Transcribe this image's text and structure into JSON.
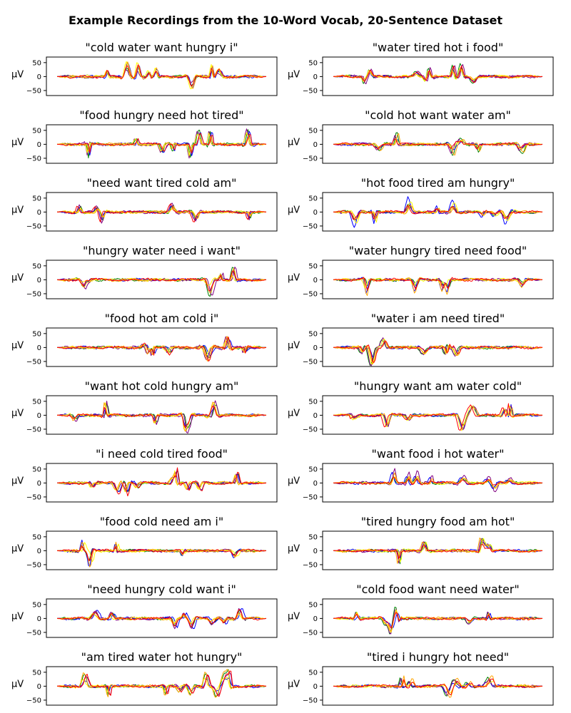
{
  "figure": {
    "title": "Example Recordings from the 10-Word Vocab, 20-Sentence Dataset"
  },
  "chart_data": {
    "type": "line",
    "ylabel": "µV",
    "ylim": [
      -68,
      70
    ],
    "yticks": [
      50,
      0,
      -50
    ],
    "xlabel": "",
    "grid": false,
    "legend": "none",
    "series_colors": [
      "green",
      "blue",
      "purple",
      "yellow",
      "orange",
      "red"
    ],
    "panels": [
      {
        "title": "\"cold water want hungry i\""
      },
      {
        "title": "\"water tired hot i food\""
      },
      {
        "title": "\"food hungry need hot tired\""
      },
      {
        "title": "\"cold hot want water am\""
      },
      {
        "title": "\"need want tired cold am\""
      },
      {
        "title": "\"hot food tired am hungry\""
      },
      {
        "title": "\"hungry water need i want\""
      },
      {
        "title": "\"water hungry tired need food\""
      },
      {
        "title": "\"food hot am cold i\""
      },
      {
        "title": "\"water i am need tired\""
      },
      {
        "title": "\"want hot cold hungry am\""
      },
      {
        "title": "\"hungry want am water cold\""
      },
      {
        "title": "\"i need cold tired food\""
      },
      {
        "title": "\"want food i hot water\""
      },
      {
        "title": "\"food cold need am i\""
      },
      {
        "title": "\"tired hungry food am hot\""
      },
      {
        "title": "\"need hungry cold want i\""
      },
      {
        "title": "\"cold food want need water\""
      },
      {
        "title": "\"am tired water hot hungry\""
      },
      {
        "title": "\"tired i hungry hot need\""
      }
    ]
  }
}
